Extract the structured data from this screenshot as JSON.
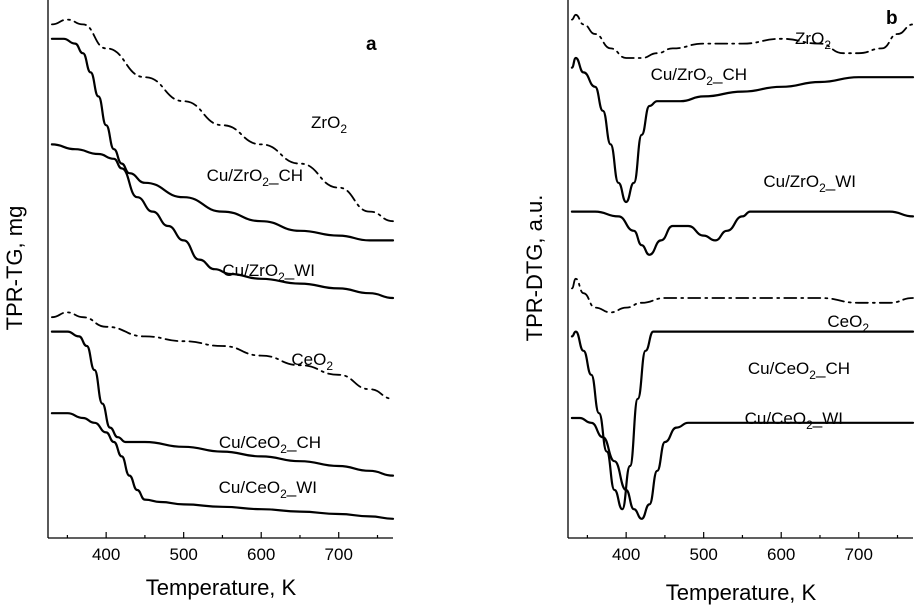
{
  "chart_data": [
    {
      "type": "line",
      "panel": "a",
      "xlabel": "Temperature, K",
      "ylabel": "TPR-TG, mg",
      "xlim": [
        325,
        770
      ],
      "x_ticks": [
        400,
        500,
        600,
        700
      ],
      "y_ticks": false,
      "series": [
        {
          "name": "ZrO2",
          "label_main": "ZrO",
          "label_sub": "2",
          "label_after": "",
          "style": "dashdot",
          "x": [
            330,
            350,
            370,
            400,
            450,
            500,
            550,
            600,
            650,
            700,
            740,
            770
          ],
          "y": [
            0.97,
            0.98,
            0.97,
            0.92,
            0.86,
            0.81,
            0.76,
            0.72,
            0.68,
            0.63,
            0.58,
            0.56
          ]
        },
        {
          "name": "Cu/ZrO2_CH",
          "label_main": "Cu/ZrO",
          "label_sub": "2",
          "label_after": "_CH",
          "style": "solid",
          "x": [
            330,
            345,
            360,
            370,
            380,
            390,
            400,
            410,
            420,
            430,
            450,
            500,
            550,
            600,
            650,
            700,
            740,
            770
          ],
          "y": [
            0.94,
            0.94,
            0.93,
            0.91,
            0.87,
            0.82,
            0.76,
            0.71,
            0.68,
            0.66,
            0.64,
            0.61,
            0.58,
            0.56,
            0.54,
            0.53,
            0.52,
            0.52
          ]
        },
        {
          "name": "Cu/ZrO2_WI",
          "label_main": "Cu/ZrO",
          "label_sub": "2",
          "label_after": "_WI",
          "style": "solid",
          "x": [
            330,
            360,
            390,
            410,
            420,
            440,
            460,
            480,
            500,
            520,
            540,
            560,
            600,
            650,
            700,
            740,
            770
          ],
          "y": [
            0.72,
            0.71,
            0.7,
            0.69,
            0.67,
            0.61,
            0.58,
            0.55,
            0.52,
            0.48,
            0.46,
            0.45,
            0.44,
            0.43,
            0.42,
            0.41,
            0.4
          ]
        },
        {
          "name": "CeO2",
          "label_main": "CeO",
          "label_sub": "2",
          "label_after": "",
          "style": "dashdot",
          "x": [
            330,
            350,
            370,
            400,
            450,
            500,
            550,
            600,
            650,
            700,
            740,
            770
          ],
          "y": [
            0.36,
            0.37,
            0.36,
            0.34,
            0.32,
            0.31,
            0.3,
            0.28,
            0.26,
            0.24,
            0.21,
            0.19
          ]
        },
        {
          "name": "Cu/CeO2_CH",
          "label_main": "Cu/CeO",
          "label_sub": "2",
          "label_after": "_CH",
          "style": "solid",
          "x": [
            330,
            350,
            365,
            375,
            385,
            395,
            405,
            415,
            425,
            450,
            500,
            550,
            600,
            650,
            700,
            740,
            770
          ],
          "y": [
            0.33,
            0.33,
            0.32,
            0.3,
            0.25,
            0.18,
            0.13,
            0.11,
            0.1,
            0.1,
            0.09,
            0.08,
            0.07,
            0.06,
            0.05,
            0.04,
            0.03
          ]
        },
        {
          "name": "Cu/CeO2_WI",
          "label_main": "Cu/CeO",
          "label_sub": "2",
          "label_after": "_WI",
          "style": "solid",
          "x": [
            330,
            350,
            370,
            385,
            400,
            410,
            420,
            430,
            440,
            450,
            470,
            500,
            550,
            600,
            650,
            700,
            740,
            770
          ],
          "y": [
            0.16,
            0.16,
            0.15,
            0.14,
            0.12,
            0.1,
            0.07,
            0.03,
            0.0,
            -0.02,
            -0.025,
            -0.03,
            -0.035,
            -0.04,
            -0.045,
            -0.05,
            -0.055,
            -0.06
          ]
        }
      ]
    },
    {
      "type": "line",
      "panel": "b",
      "xlabel": "Temperature, K",
      "ylabel": "TPR-DTG, a.u.",
      "xlim": [
        325,
        770
      ],
      "x_ticks": [
        400,
        500,
        600,
        700
      ],
      "y_ticks": false,
      "series": [
        {
          "name": "ZrO2",
          "label_main": "ZrO",
          "label_sub": "2",
          "label_after": "",
          "style": "dashdot",
          "x": [
            330,
            335,
            345,
            360,
            380,
            400,
            420,
            440,
            460,
            500,
            550,
            600,
            650,
            680,
            700,
            730,
            750,
            770
          ],
          "y": [
            0.98,
            0.99,
            0.97,
            0.95,
            0.92,
            0.9,
            0.9,
            0.91,
            0.92,
            0.93,
            0.93,
            0.94,
            0.93,
            0.91,
            0.91,
            0.92,
            0.95,
            0.97
          ]
        },
        {
          "name": "Cu/ZrO2_CH",
          "label_main": "Cu/ZrO",
          "label_sub": "2",
          "label_after": "_CH",
          "style": "solid",
          "x": [
            330,
            335,
            345,
            360,
            370,
            380,
            390,
            400,
            410,
            420,
            430,
            440,
            450,
            470,
            500,
            550,
            600,
            650,
            700,
            740,
            770
          ],
          "y": [
            0.88,
            0.9,
            0.87,
            0.84,
            0.79,
            0.72,
            0.64,
            0.6,
            0.64,
            0.74,
            0.8,
            0.81,
            0.81,
            0.81,
            0.82,
            0.83,
            0.84,
            0.85,
            0.86,
            0.86,
            0.86
          ]
        },
        {
          "name": "Cu/ZrO2_WI",
          "label_main": "Cu/ZrO",
          "label_sub": "2",
          "label_after": "_WI",
          "style": "solid",
          "x": [
            330,
            360,
            390,
            410,
            420,
            430,
            445,
            460,
            480,
            500,
            515,
            530,
            550,
            560,
            600,
            650,
            700,
            740,
            770
          ],
          "y": [
            0.58,
            0.58,
            0.57,
            0.54,
            0.51,
            0.49,
            0.52,
            0.55,
            0.55,
            0.53,
            0.52,
            0.54,
            0.57,
            0.58,
            0.58,
            0.58,
            0.58,
            0.58,
            0.57
          ]
        },
        {
          "name": "CeO2",
          "label_main": "CeO",
          "label_sub": "2",
          "label_after": "",
          "style": "dashdot",
          "x": [
            330,
            335,
            345,
            360,
            380,
            400,
            420,
            450,
            480,
            500,
            550,
            600,
            650,
            700,
            740,
            770
          ],
          "y": [
            0.42,
            0.44,
            0.41,
            0.38,
            0.37,
            0.38,
            0.39,
            0.4,
            0.4,
            0.4,
            0.4,
            0.4,
            0.4,
            0.39,
            0.39,
            0.4
          ]
        },
        {
          "name": "Cu/CeO2_CH",
          "label_main": "Cu/CeO",
          "label_sub": "2",
          "label_after": "_CH",
          "style": "solid",
          "x": [
            330,
            335,
            345,
            355,
            365,
            375,
            385,
            395,
            405,
            415,
            425,
            435,
            450,
            500,
            550,
            600,
            650,
            700,
            740,
            770
          ],
          "y": [
            0.32,
            0.33,
            0.29,
            0.24,
            0.16,
            0.08,
            0.0,
            -0.04,
            0.05,
            0.19,
            0.29,
            0.33,
            0.33,
            0.33,
            0.33,
            0.33,
            0.33,
            0.33,
            0.33,
            0.33
          ]
        },
        {
          "name": "Cu/CeO2_WI",
          "label_main": "Cu/CeO",
          "label_sub": "2",
          "label_after": "_WI",
          "style": "solid",
          "x": [
            330,
            340,
            355,
            370,
            385,
            400,
            410,
            420,
            430,
            440,
            450,
            465,
            480,
            500,
            550,
            600,
            650,
            700,
            740,
            770
          ],
          "y": [
            0.15,
            0.15,
            0.14,
            0.11,
            0.06,
            0.0,
            -0.04,
            -0.06,
            -0.03,
            0.04,
            0.1,
            0.13,
            0.14,
            0.14,
            0.14,
            0.14,
            0.14,
            0.14,
            0.14,
            0.14
          ]
        }
      ]
    }
  ]
}
